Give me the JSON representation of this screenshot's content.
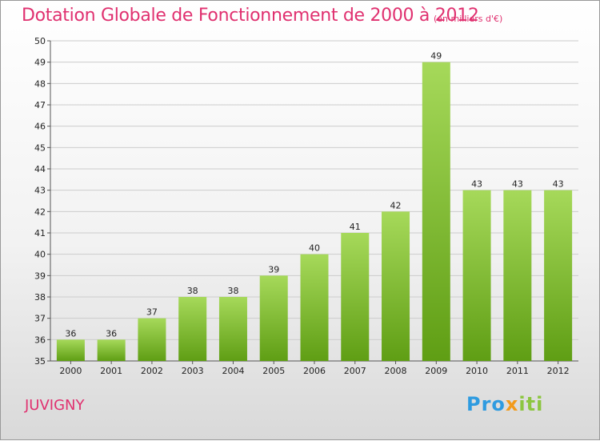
{
  "header": {
    "title": "Dotation Globale de Fonctionnement de 2000 à 2012",
    "unit": "(en milliers d'€)"
  },
  "footer": {
    "commune": "JUVIGNY",
    "logo": {
      "part1": "Pro",
      "part2": "x",
      "part3": "iti"
    }
  },
  "colors": {
    "title": "#e0306f",
    "bar_top": "#a6d95a",
    "bar_bottom": "#5f9e14",
    "grid": "#cccccc"
  },
  "chart_data": {
    "type": "bar",
    "categories": [
      "2000",
      "2001",
      "2002",
      "2003",
      "2004",
      "2005",
      "2006",
      "2007",
      "2008",
      "2009",
      "2010",
      "2011",
      "2012"
    ],
    "values": [
      36,
      36,
      37,
      38,
      38,
      39,
      40,
      41,
      42,
      49,
      43,
      43,
      43
    ],
    "ylim": [
      35,
      50
    ],
    "yticks": [
      35,
      36,
      37,
      38,
      39,
      40,
      41,
      42,
      43,
      44,
      45,
      46,
      47,
      48,
      49,
      50
    ],
    "grid": true,
    "data_labels": true,
    "title": "Dotation Globale de Fonctionnement de 2000 à 2012",
    "xlabel": "",
    "ylabel": ""
  }
}
